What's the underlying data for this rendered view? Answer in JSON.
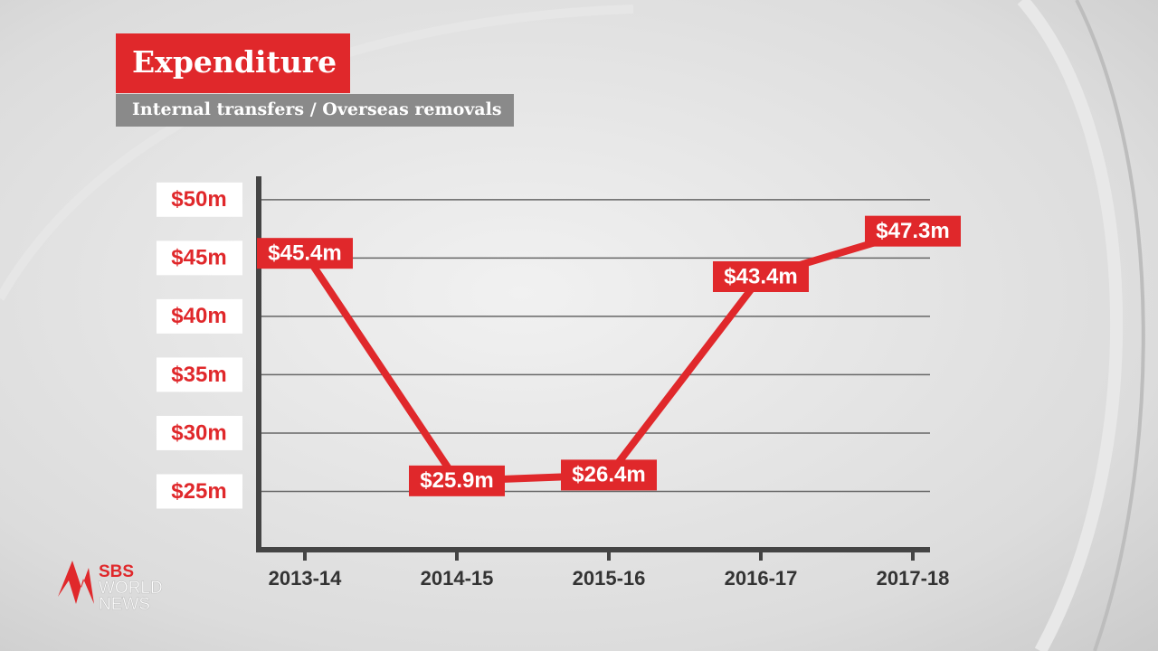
{
  "chart_data": {
    "type": "line",
    "title": "Expenditure",
    "subtitle": "Internal transfers / Overseas removals",
    "categories": [
      "2013-14",
      "2014-15",
      "2015-16",
      "2016-17",
      "2017-18"
    ],
    "values": [
      45.4,
      25.9,
      26.4,
      43.4,
      47.3
    ],
    "value_labels": [
      "$45.4m",
      "$25.9m",
      "$26.4m",
      "$43.4m",
      "$47.3m"
    ],
    "color": "#e0282b",
    "ylim": [
      20,
      52
    ],
    "yticks": [
      {
        "value": 25,
        "label": "$25m"
      },
      {
        "value": 30,
        "label": "$30m"
      },
      {
        "value": 35,
        "label": "$35m"
      },
      {
        "value": 40,
        "label": "$40m"
      },
      {
        "value": 45,
        "label": "$45m"
      },
      {
        "value": 50,
        "label": "$50m"
      }
    ],
    "grid": true
  },
  "logo": {
    "line1": "SBS",
    "line2": "WORLD",
    "line3": "NEWS"
  }
}
